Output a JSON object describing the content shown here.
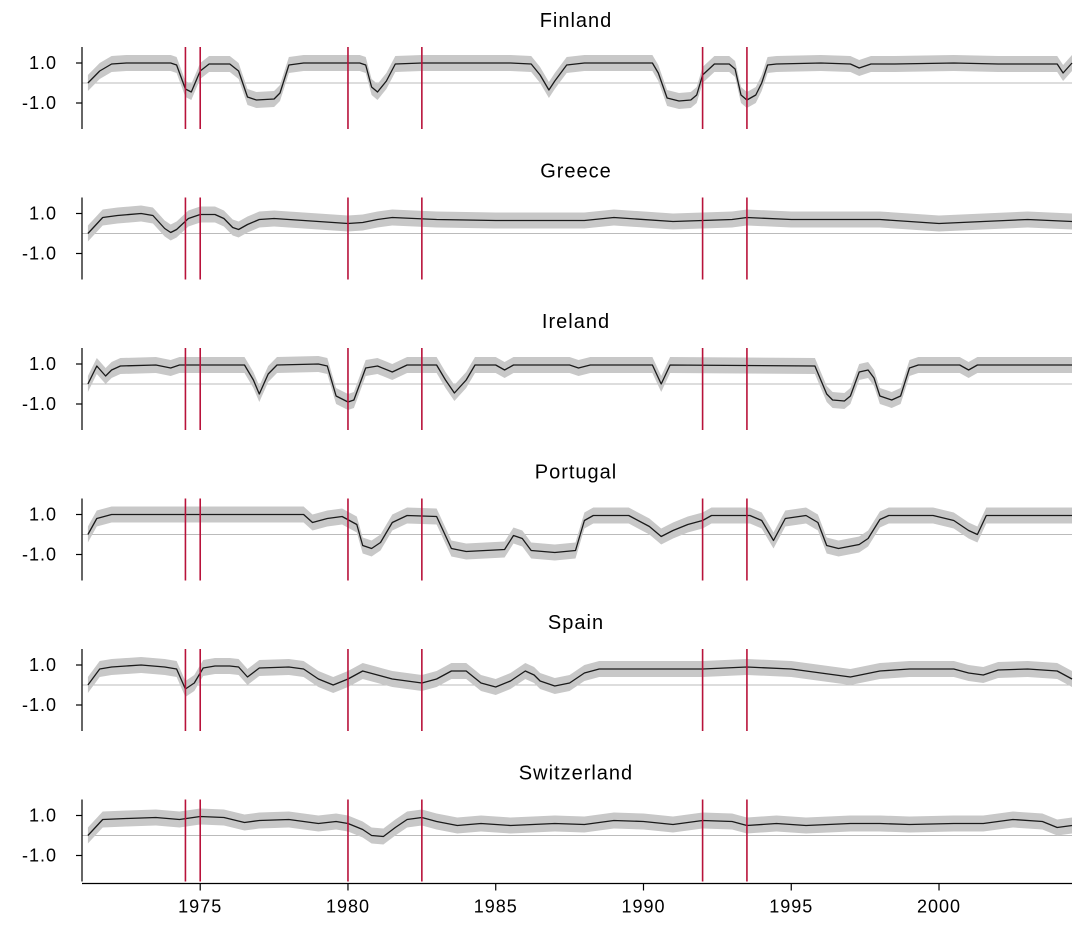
{
  "chart_data": {
    "type": "line",
    "x_axis": {
      "min": 1971.0,
      "max": 2004.5,
      "ticks": [
        1975,
        1980,
        1985,
        1990,
        1995,
        2000
      ],
      "tick_labels": [
        "1975",
        "1980",
        "1985",
        "1990",
        "1995",
        "2000"
      ]
    },
    "y_axis": {
      "range": [
        -2.3,
        1.8
      ],
      "ticks": [
        1.0,
        -1.0
      ],
      "tick_labels": [
        "1.0",
        "-1.0"
      ],
      "zero_reference_line": true
    },
    "vertical_markers": [
      1974.5,
      1975.0,
      1980.0,
      1982.5,
      1992.0,
      1993.5
    ],
    "colors": {
      "line": "#1a1a1a",
      "band": "#c8c8c8",
      "marker": "#b8123a",
      "zero_line": "#bbbbbb",
      "axis": "#000000"
    },
    "panels": [
      {
        "title": "Finland",
        "points": [
          [
            1971.2,
            0.0
          ],
          [
            1971.6,
            0.6
          ],
          [
            1972.0,
            0.95
          ],
          [
            1972.5,
            1.0
          ],
          [
            1974.0,
            1.0
          ],
          [
            1974.2,
            0.9
          ],
          [
            1974.5,
            -0.3
          ],
          [
            1974.7,
            -0.45
          ],
          [
            1975.0,
            0.6
          ],
          [
            1975.3,
            0.95
          ],
          [
            1976.0,
            0.95
          ],
          [
            1976.3,
            0.6
          ],
          [
            1976.6,
            -0.7
          ],
          [
            1976.9,
            -0.85
          ],
          [
            1977.5,
            -0.8
          ],
          [
            1977.7,
            -0.5
          ],
          [
            1978.0,
            0.9
          ],
          [
            1978.5,
            1.0
          ],
          [
            1979.5,
            1.0
          ],
          [
            1980.4,
            1.0
          ],
          [
            1980.6,
            0.9
          ],
          [
            1980.8,
            -0.2
          ],
          [
            1981.0,
            -0.45
          ],
          [
            1981.3,
            0.1
          ],
          [
            1981.6,
            0.95
          ],
          [
            1982.5,
            1.0
          ],
          [
            1984.5,
            1.0
          ],
          [
            1985.5,
            1.0
          ],
          [
            1986.2,
            0.95
          ],
          [
            1986.5,
            0.4
          ],
          [
            1986.8,
            -0.35
          ],
          [
            1987.0,
            0.1
          ],
          [
            1987.4,
            0.9
          ],
          [
            1988.0,
            1.0
          ],
          [
            1989.5,
            1.0
          ],
          [
            1990.3,
            1.0
          ],
          [
            1990.5,
            0.5
          ],
          [
            1990.8,
            -0.75
          ],
          [
            1991.2,
            -0.9
          ],
          [
            1991.6,
            -0.85
          ],
          [
            1991.8,
            -0.6
          ],
          [
            1992.0,
            0.4
          ],
          [
            1992.4,
            0.95
          ],
          [
            1992.9,
            0.95
          ],
          [
            1993.1,
            0.7
          ],
          [
            1993.3,
            -0.6
          ],
          [
            1993.5,
            -0.85
          ],
          [
            1993.8,
            -0.6
          ],
          [
            1994.0,
            0.0
          ],
          [
            1994.2,
            0.9
          ],
          [
            1994.5,
            0.95
          ],
          [
            1996.0,
            1.0
          ],
          [
            1997.0,
            0.95
          ],
          [
            1997.3,
            0.75
          ],
          [
            1997.7,
            0.95
          ],
          [
            1998.5,
            0.95
          ],
          [
            2000.5,
            1.0
          ],
          [
            2002.0,
            0.95
          ],
          [
            2004.0,
            0.95
          ],
          [
            2004.2,
            0.5
          ],
          [
            2004.5,
            1.0
          ]
        ]
      },
      {
        "title": "Greece",
        "points": [
          [
            1971.2,
            0.0
          ],
          [
            1971.7,
            0.8
          ],
          [
            1972.2,
            0.9
          ],
          [
            1973.0,
            1.0
          ],
          [
            1973.4,
            0.9
          ],
          [
            1973.8,
            0.25
          ],
          [
            1974.0,
            0.05
          ],
          [
            1974.2,
            0.2
          ],
          [
            1974.6,
            0.75
          ],
          [
            1975.0,
            0.95
          ],
          [
            1975.5,
            0.95
          ],
          [
            1975.8,
            0.75
          ],
          [
            1976.1,
            0.3
          ],
          [
            1976.3,
            0.2
          ],
          [
            1976.6,
            0.45
          ],
          [
            1977.0,
            0.7
          ],
          [
            1977.5,
            0.75
          ],
          [
            1980.0,
            0.5
          ],
          [
            1980.5,
            0.55
          ],
          [
            1981.0,
            0.7
          ],
          [
            1981.5,
            0.8
          ],
          [
            1983.0,
            0.7
          ],
          [
            1985.0,
            0.65
          ],
          [
            1987.0,
            0.65
          ],
          [
            1988.0,
            0.65
          ],
          [
            1989.0,
            0.8
          ],
          [
            1991.0,
            0.6
          ],
          [
            1993.0,
            0.7
          ],
          [
            1993.5,
            0.8
          ],
          [
            1995.0,
            0.7
          ],
          [
            1998.0,
            0.7
          ],
          [
            2000.0,
            0.5
          ],
          [
            2001.5,
            0.6
          ],
          [
            2003.0,
            0.7
          ],
          [
            2004.5,
            0.6
          ]
        ]
      },
      {
        "title": "Ireland",
        "points": [
          [
            1971.2,
            0.0
          ],
          [
            1971.5,
            0.9
          ],
          [
            1971.8,
            0.4
          ],
          [
            1972.0,
            0.7
          ],
          [
            1972.3,
            0.9
          ],
          [
            1973.5,
            0.95
          ],
          [
            1974.0,
            0.8
          ],
          [
            1974.3,
            0.95
          ],
          [
            1976.5,
            0.95
          ],
          [
            1976.8,
            0.2
          ],
          [
            1977.0,
            -0.5
          ],
          [
            1977.3,
            0.5
          ],
          [
            1977.6,
            0.95
          ],
          [
            1979.0,
            1.0
          ],
          [
            1979.3,
            0.9
          ],
          [
            1979.6,
            -0.6
          ],
          [
            1980.0,
            -0.9
          ],
          [
            1980.2,
            -0.8
          ],
          [
            1980.6,
            0.8
          ],
          [
            1981.0,
            0.9
          ],
          [
            1981.5,
            0.6
          ],
          [
            1982.0,
            0.95
          ],
          [
            1983.0,
            0.95
          ],
          [
            1983.3,
            0.2
          ],
          [
            1983.6,
            -0.45
          ],
          [
            1984.0,
            0.2
          ],
          [
            1984.3,
            0.95
          ],
          [
            1985.0,
            0.95
          ],
          [
            1985.3,
            0.7
          ],
          [
            1985.6,
            0.95
          ],
          [
            1987.5,
            0.95
          ],
          [
            1987.8,
            0.8
          ],
          [
            1988.2,
            0.95
          ],
          [
            1990.3,
            0.95
          ],
          [
            1990.6,
            0.0
          ],
          [
            1990.9,
            0.95
          ],
          [
            1995.8,
            0.9
          ],
          [
            1996.2,
            -0.5
          ],
          [
            1996.4,
            -0.8
          ],
          [
            1996.8,
            -0.85
          ],
          [
            1997.0,
            -0.6
          ],
          [
            1997.3,
            0.6
          ],
          [
            1997.6,
            0.7
          ],
          [
            1997.8,
            0.3
          ],
          [
            1998.0,
            -0.6
          ],
          [
            1998.4,
            -0.8
          ],
          [
            1998.7,
            -0.6
          ],
          [
            1999.0,
            0.8
          ],
          [
            1999.3,
            0.95
          ],
          [
            2000.7,
            0.95
          ],
          [
            2001.0,
            0.7
          ],
          [
            2001.3,
            0.95
          ],
          [
            2004.5,
            0.95
          ]
        ]
      },
      {
        "title": "Portugal",
        "points": [
          [
            1971.2,
            0.0
          ],
          [
            1971.5,
            0.8
          ],
          [
            1972.0,
            1.0
          ],
          [
            1978.5,
            1.0
          ],
          [
            1978.8,
            0.6
          ],
          [
            1979.3,
            0.8
          ],
          [
            1979.8,
            0.9
          ],
          [
            1980.3,
            0.5
          ],
          [
            1980.5,
            -0.55
          ],
          [
            1980.8,
            -0.7
          ],
          [
            1981.1,
            -0.4
          ],
          [
            1981.5,
            0.6
          ],
          [
            1982.0,
            0.95
          ],
          [
            1983.0,
            0.9
          ],
          [
            1983.5,
            -0.7
          ],
          [
            1984.0,
            -0.85
          ],
          [
            1985.3,
            -0.75
          ],
          [
            1985.6,
            -0.05
          ],
          [
            1985.9,
            -0.2
          ],
          [
            1986.2,
            -0.8
          ],
          [
            1987.0,
            -0.9
          ],
          [
            1987.7,
            -0.8
          ],
          [
            1988.0,
            0.7
          ],
          [
            1988.3,
            0.95
          ],
          [
            1989.5,
            0.95
          ],
          [
            1990.2,
            0.4
          ],
          [
            1990.6,
            -0.1
          ],
          [
            1991.0,
            0.2
          ],
          [
            1991.5,
            0.5
          ],
          [
            1992.0,
            0.7
          ],
          [
            1992.3,
            0.95
          ],
          [
            1993.6,
            0.95
          ],
          [
            1994.0,
            0.7
          ],
          [
            1994.4,
            -0.3
          ],
          [
            1994.8,
            0.8
          ],
          [
            1995.5,
            0.95
          ],
          [
            1995.9,
            0.6
          ],
          [
            1996.2,
            -0.55
          ],
          [
            1996.6,
            -0.7
          ],
          [
            1997.3,
            -0.5
          ],
          [
            1997.6,
            -0.2
          ],
          [
            1998.0,
            0.75
          ],
          [
            1998.3,
            0.95
          ],
          [
            1999.8,
            0.95
          ],
          [
            2000.5,
            0.7
          ],
          [
            2001.0,
            0.2
          ],
          [
            2001.3,
            0.0
          ],
          [
            2001.6,
            0.95
          ],
          [
            2004.5,
            0.95
          ]
        ]
      },
      {
        "title": "Spain",
        "points": [
          [
            1971.2,
            0.0
          ],
          [
            1971.6,
            0.8
          ],
          [
            1972.0,
            0.9
          ],
          [
            1973.0,
            1.0
          ],
          [
            1973.8,
            0.9
          ],
          [
            1974.2,
            0.8
          ],
          [
            1974.5,
            -0.2
          ],
          [
            1974.8,
            0.1
          ],
          [
            1975.1,
            0.85
          ],
          [
            1975.5,
            0.95
          ],
          [
            1976.0,
            0.95
          ],
          [
            1976.3,
            0.9
          ],
          [
            1976.6,
            0.4
          ],
          [
            1977.0,
            0.85
          ],
          [
            1978.0,
            0.9
          ],
          [
            1978.5,
            0.8
          ],
          [
            1979.0,
            0.3
          ],
          [
            1979.5,
            0.0
          ],
          [
            1980.0,
            0.3
          ],
          [
            1980.5,
            0.7
          ],
          [
            1981.0,
            0.5
          ],
          [
            1981.5,
            0.3
          ],
          [
            1982.5,
            0.1
          ],
          [
            1983.0,
            0.3
          ],
          [
            1983.5,
            0.7
          ],
          [
            1984.0,
            0.7
          ],
          [
            1984.5,
            0.1
          ],
          [
            1985.0,
            -0.1
          ],
          [
            1985.5,
            0.2
          ],
          [
            1986.0,
            0.7
          ],
          [
            1986.3,
            0.5
          ],
          [
            1986.5,
            0.2
          ],
          [
            1987.0,
            -0.05
          ],
          [
            1987.5,
            0.1
          ],
          [
            1988.0,
            0.6
          ],
          [
            1988.5,
            0.8
          ],
          [
            1990.0,
            0.8
          ],
          [
            1992.0,
            0.8
          ],
          [
            1993.5,
            0.9
          ],
          [
            1995.0,
            0.8
          ],
          [
            1996.0,
            0.6
          ],
          [
            1997.0,
            0.4
          ],
          [
            1998.0,
            0.7
          ],
          [
            1999.0,
            0.8
          ],
          [
            2000.5,
            0.8
          ],
          [
            2001.0,
            0.6
          ],
          [
            2001.5,
            0.5
          ],
          [
            2002.0,
            0.75
          ],
          [
            2003.0,
            0.8
          ],
          [
            2004.0,
            0.7
          ],
          [
            2004.5,
            0.3
          ]
        ]
      },
      {
        "title": "Switzerland",
        "points": [
          [
            1971.2,
            0.0
          ],
          [
            1971.7,
            0.8
          ],
          [
            1972.5,
            0.85
          ],
          [
            1973.5,
            0.9
          ],
          [
            1974.3,
            0.8
          ],
          [
            1975.0,
            0.95
          ],
          [
            1975.8,
            0.9
          ],
          [
            1976.5,
            0.65
          ],
          [
            1977.0,
            0.75
          ],
          [
            1978.0,
            0.8
          ],
          [
            1979.0,
            0.6
          ],
          [
            1979.6,
            0.7
          ],
          [
            1980.0,
            0.6
          ],
          [
            1980.5,
            0.3
          ],
          [
            1980.8,
            0.0
          ],
          [
            1981.2,
            -0.05
          ],
          [
            1981.6,
            0.4
          ],
          [
            1982.0,
            0.8
          ],
          [
            1982.5,
            0.9
          ],
          [
            1983.0,
            0.7
          ],
          [
            1983.7,
            0.5
          ],
          [
            1984.5,
            0.6
          ],
          [
            1985.5,
            0.5
          ],
          [
            1987.0,
            0.6
          ],
          [
            1988.0,
            0.55
          ],
          [
            1989.0,
            0.75
          ],
          [
            1990.0,
            0.7
          ],
          [
            1991.0,
            0.55
          ],
          [
            1992.0,
            0.75
          ],
          [
            1993.0,
            0.7
          ],
          [
            1993.5,
            0.5
          ],
          [
            1994.5,
            0.6
          ],
          [
            1995.5,
            0.5
          ],
          [
            1997.0,
            0.6
          ],
          [
            1998.0,
            0.6
          ],
          [
            1999.0,
            0.55
          ],
          [
            2000.5,
            0.6
          ],
          [
            2001.5,
            0.6
          ],
          [
            2002.5,
            0.8
          ],
          [
            2003.5,
            0.7
          ],
          [
            2004.0,
            0.4
          ],
          [
            2004.5,
            0.5
          ]
        ]
      }
    ]
  }
}
